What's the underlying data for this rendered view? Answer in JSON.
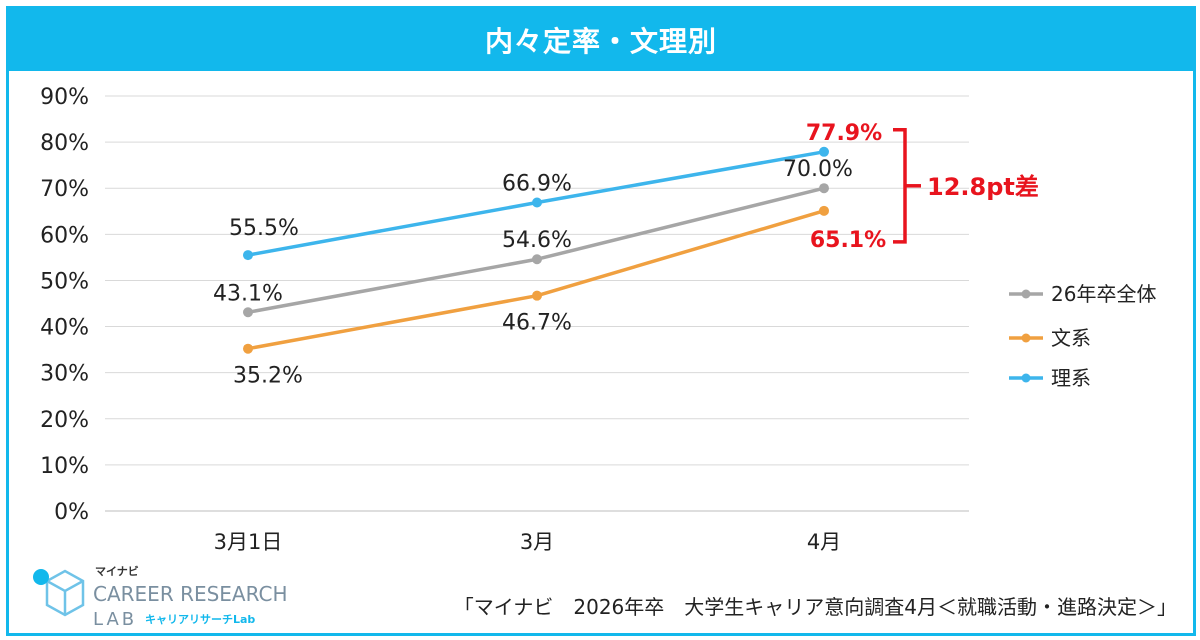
{
  "title": "内々定率・文理別",
  "chart_data": {
    "type": "line",
    "categories": [
      "3月1日",
      "3月",
      "4月"
    ],
    "ylim": [
      0,
      90
    ],
    "yticks": [
      "0%",
      "10%",
      "20%",
      "30%",
      "40%",
      "50%",
      "60%",
      "70%",
      "80%",
      "90%"
    ],
    "grid": true,
    "legend_position": "right",
    "series": [
      {
        "name": "26年卒全体",
        "color": "#a6a6a6",
        "values": [
          43.1,
          54.6,
          70.0
        ],
        "labels": [
          "43.1%",
          "54.6%",
          "70.0%"
        ]
      },
      {
        "name": "文系",
        "color": "#f0a040",
        "values": [
          35.2,
          46.7,
          65.1
        ],
        "labels": [
          "35.2%",
          "46.7%",
          "65.1%"
        ]
      },
      {
        "name": "理系",
        "color": "#3db5ec",
        "values": [
          55.5,
          66.9,
          77.9
        ],
        "labels": [
          "55.5%",
          "66.9%",
          "77.9%"
        ]
      }
    ],
    "annotation": {
      "text": "12.8pt差",
      "color": "#e8141e"
    }
  },
  "logo": {
    "top_text": "マイナビ",
    "main_text": "CAREER RESEARCH",
    "lab_text": "LAB",
    "sub_text": "キャリアリサーチLab",
    "color": "#6fc3e8"
  },
  "source": "「マイナビ　2026年卒　大学生キャリア意向調査4月＜就職活動・進路決定＞」"
}
